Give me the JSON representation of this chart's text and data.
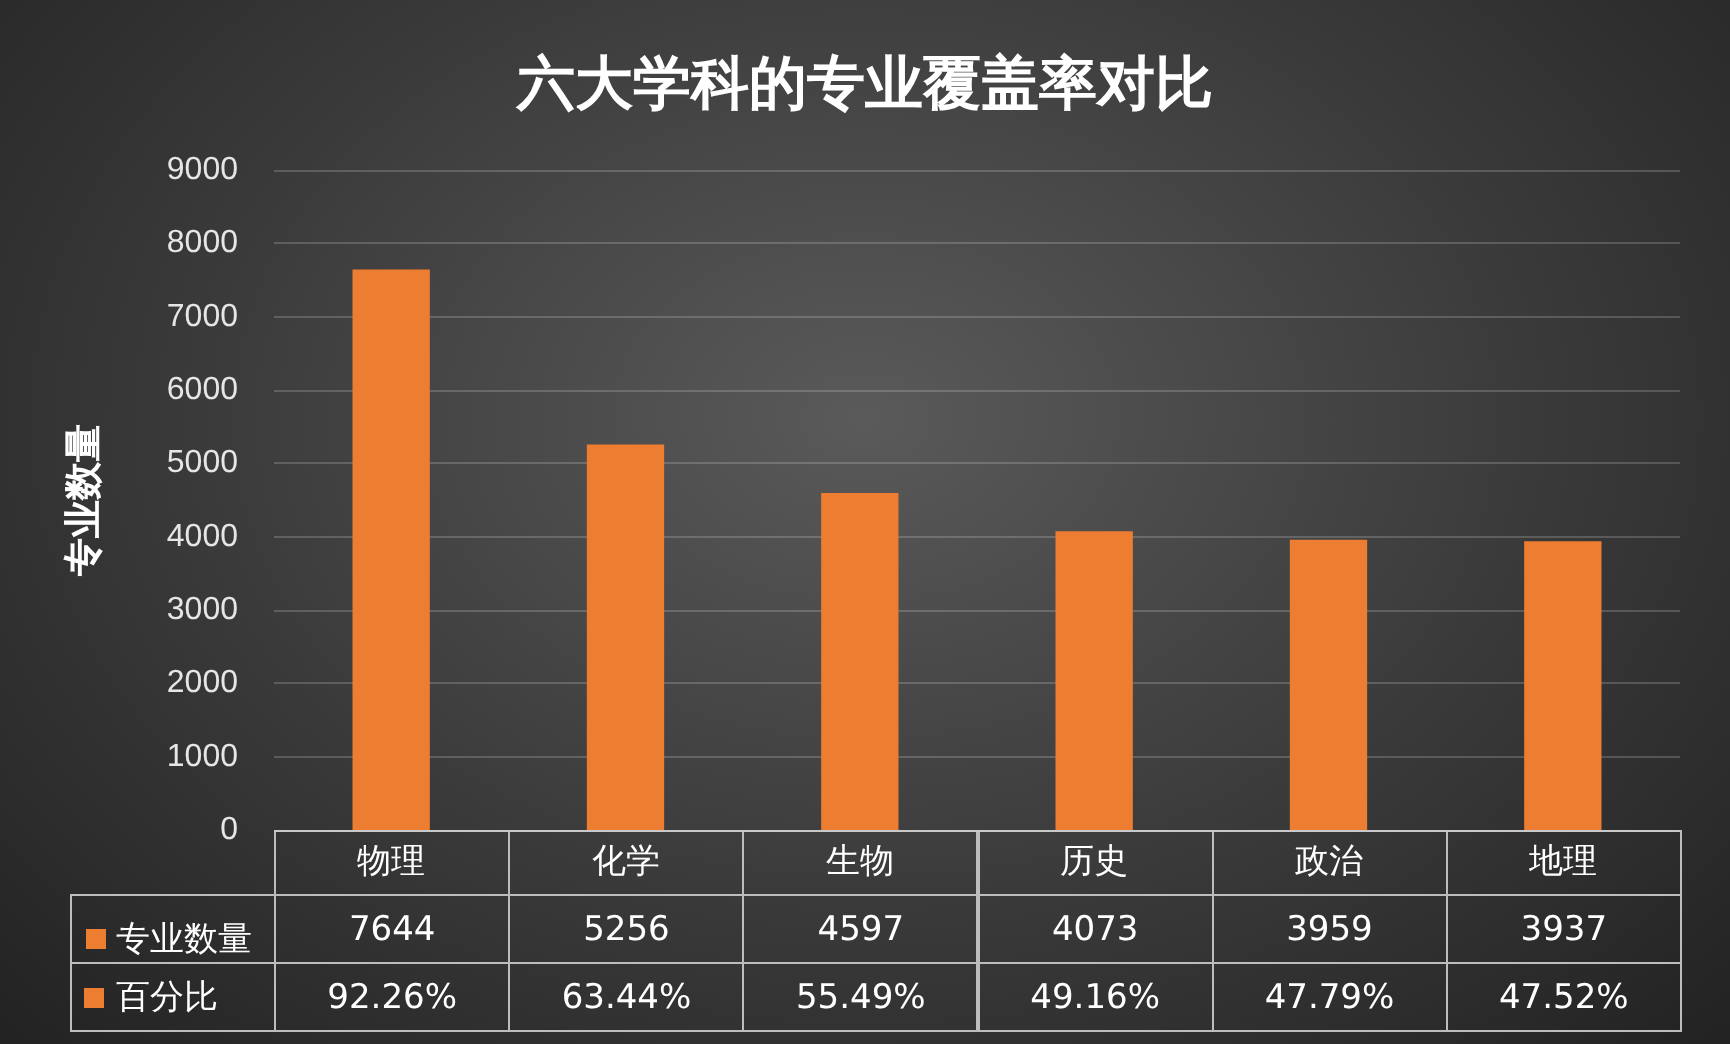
{
  "chart_data": {
    "type": "bar",
    "title": "六大学科的专业覆盖率对比",
    "ylabel": "专业数量",
    "categories": [
      "物理",
      "化学",
      "生物",
      "历史",
      "政治",
      "地理"
    ],
    "series": [
      {
        "name": "专业数量",
        "color": "#ed7d31",
        "values": [
          7644,
          5256,
          4597,
          4073,
          3959,
          3937
        ]
      }
    ],
    "ylim": [
      0,
      9000
    ],
    "yticks": [
      0,
      1000,
      2000,
      3000,
      4000,
      5000,
      6000,
      7000,
      8000,
      9000
    ],
    "grid": "y",
    "legend": "bottom",
    "data_labels": true,
    "annotations": [
      "百分比",
      "92.26%",
      "63.44%",
      "55.49%",
      "49.16%",
      "47.79%",
      "47.52%"
    ]
  }
}
